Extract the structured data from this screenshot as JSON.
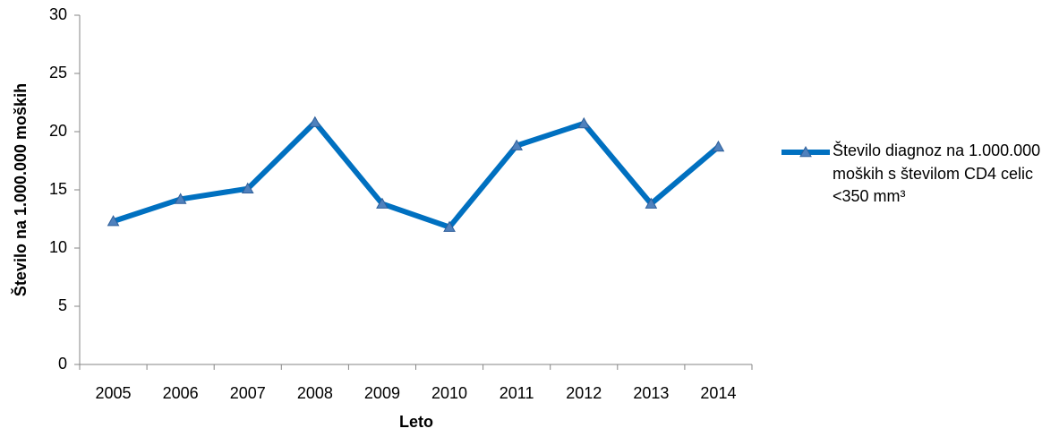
{
  "chart_data": {
    "type": "line",
    "x_label": "Leto",
    "y_label": "Število na 1.000.000 moških",
    "categories": [
      "2005",
      "2006",
      "2007",
      "2008",
      "2009",
      "2010",
      "2011",
      "2012",
      "2013",
      "2014"
    ],
    "series": [
      {
        "name": "Število diagnoz na 1.000.000 moških s številom CD4 celic <350 mm³",
        "color": "#0070c0",
        "values": [
          12.3,
          14.2,
          15.1,
          20.8,
          13.8,
          11.8,
          18.8,
          20.7,
          13.8,
          18.7
        ]
      }
    ],
    "ylim": [
      0,
      30
    ],
    "yticks": [
      0,
      5,
      10,
      15,
      20,
      25,
      30
    ],
    "grid": false,
    "legend": "right"
  }
}
